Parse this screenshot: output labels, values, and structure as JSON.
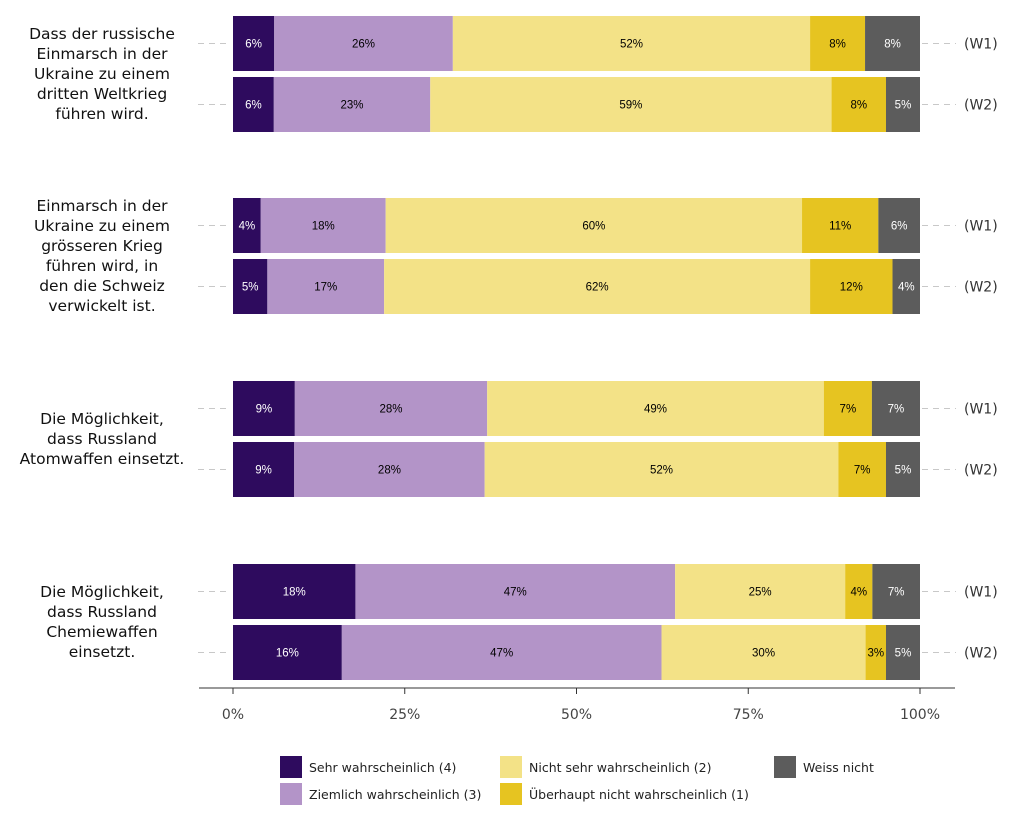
{
  "chart_data": {
    "type": "bar",
    "orientation": "horizontal",
    "stacked": true,
    "xlim": [
      0,
      100
    ],
    "x_ticks": [
      "0%",
      "25%",
      "50%",
      "75%",
      "100%"
    ],
    "categories": [
      {
        "label": "Dass der russische Einmarsch in der Ukraine zu einem dritten Weltkrieg führen wird.",
        "label_lines": [
          "Dass der russische",
          "Einmarsch in der",
          "Ukraine zu einem",
          "dritten Weltkrieg",
          "führen wird."
        ],
        "waves": [
          {
            "wave": "(W1)",
            "values": [
              6,
              26,
              52,
              8,
              8
            ]
          },
          {
            "wave": "(W2)",
            "values": [
              6,
              23,
              59,
              8,
              5
            ]
          }
        ]
      },
      {
        "label": "Einmarsch in der Ukraine zu einem grösseren Krieg führen wird, in den die Schweiz verwickelt ist.",
        "label_lines": [
          "Einmarsch in der",
          "Ukraine zu einem",
          "grösseren Krieg",
          "führen wird, in",
          "den die Schweiz",
          "verwickelt ist."
        ],
        "waves": [
          {
            "wave": "(W1)",
            "values": [
              4,
              18,
              60,
              11,
              6
            ]
          },
          {
            "wave": "(W2)",
            "values": [
              5,
              17,
              62,
              12,
              4
            ]
          }
        ]
      },
      {
        "label": "Die Möglichkeit, dass Russland Atomwaffen einsetzt.",
        "label_lines": [
          "Die Möglichkeit,",
          "dass Russland",
          "Atomwaffen einsetzt."
        ],
        "waves": [
          {
            "wave": "(W1)",
            "values": [
              9,
              28,
              49,
              7,
              7
            ]
          },
          {
            "wave": "(W2)",
            "values": [
              9,
              28,
              52,
              7,
              5
            ]
          }
        ]
      },
      {
        "label": "Die Möglichkeit, dass Russland Chemiewaffen einsetzt.",
        "label_lines": [
          "Die Möglichkeit,",
          "dass Russland",
          "Chemiewaffen",
          "einsetzt."
        ],
        "waves": [
          {
            "wave": "(W1)",
            "values": [
              18,
              47,
              25,
              4,
              7
            ]
          },
          {
            "wave": "(W2)",
            "values": [
              16,
              47,
              30,
              3,
              5
            ]
          }
        ]
      }
    ],
    "series": [
      {
        "name": "Sehr wahrscheinlich (4)",
        "color": "#2e0b5e",
        "label_color": "#ffffff"
      },
      {
        "name": "Ziemlich wahrscheinlich (3)",
        "color": "#b394c8",
        "label_color": "#000000"
      },
      {
        "name": "Nicht sehr wahrscheinlich (2)",
        "color": "#f3e287",
        "label_color": "#000000"
      },
      {
        "name": "Überhaupt nicht wahrscheinlich (1)",
        "color": "#e6c421",
        "label_color": "#000000"
      },
      {
        "name": "Weiss nicht",
        "color": "#5c5c5c",
        "label_color": "#ffffff"
      }
    ],
    "legend": {
      "position": "bottom",
      "items": [
        "Sehr wahrscheinlich (4)",
        "Ziemlich wahrscheinlich (3)",
        "Nicht sehr wahrscheinlich (2)",
        "Überhaupt nicht wahrscheinlich (1)",
        "Weiss nicht"
      ]
    }
  }
}
